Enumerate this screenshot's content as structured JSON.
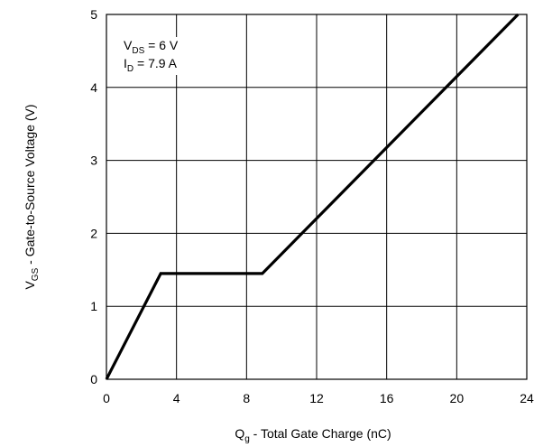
{
  "chart_data": {
    "type": "line",
    "x_axis": {
      "label_main": "Q",
      "label_sub": "g",
      "label_rest": " - Total Gate Charge (nC)",
      "range": [
        0,
        24
      ],
      "ticks": [
        0,
        4,
        8,
        12,
        16,
        20,
        24
      ],
      "tick_labels": [
        "0",
        "4",
        "8",
        "12",
        "16",
        "20",
        "24"
      ]
    },
    "y_axis": {
      "label_main": "V",
      "label_sub": "GS",
      "label_rest": " - Gate-to-Source Voltage (V)",
      "range": [
        0,
        5
      ],
      "ticks": [
        0,
        1,
        2,
        3,
        4,
        5
      ],
      "tick_labels": [
        "0",
        "1",
        "2",
        "3",
        "4",
        "5"
      ]
    },
    "grid": true,
    "annotations": [
      {
        "main": "V",
        "sub": "DS",
        "rest": " = 6 V"
      },
      {
        "main": "I",
        "sub": "D",
        "rest": " = 7.9 A"
      }
    ],
    "series": [
      {
        "x": [
          0,
          3.1,
          8.9,
          23.5
        ],
        "y": [
          0,
          1.45,
          1.45,
          5.0
        ]
      }
    ],
    "colors": {
      "line": "#000000",
      "grid": "#000000"
    }
  }
}
